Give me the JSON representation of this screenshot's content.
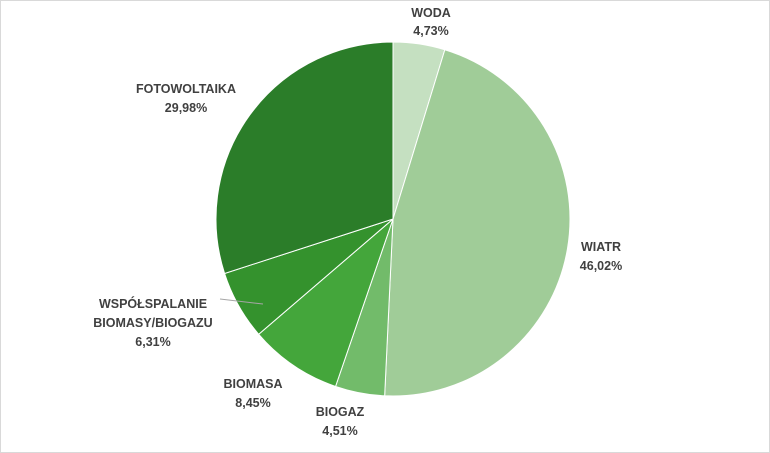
{
  "chart_data": {
    "type": "pie",
    "start_angle_deg": 0,
    "direction": "clockwise",
    "slices": [
      {
        "name": "WODA",
        "label": "4,73%",
        "value": 4.73,
        "color": "#c5e0c1"
      },
      {
        "name": "WIATR",
        "label": "46,02%",
        "value": 46.02,
        "color": "#a0cc98"
      },
      {
        "name": "BIOGAZ",
        "label": "4,51%",
        "value": 4.51,
        "color": "#72bb6a"
      },
      {
        "name": "BIOMASA",
        "label": "8,45%",
        "value": 8.45,
        "color": "#44a63b"
      },
      {
        "name": "WSPÓŁSPALANIE BIOMASY/BIOGAZU",
        "label": "6,31%",
        "value": 6.31,
        "color": "#34922d"
      },
      {
        "name": "FOTOWOLTAIKA",
        "label": "29,98%",
        "value": 29.98,
        "color": "#2b7d29"
      }
    ]
  }
}
